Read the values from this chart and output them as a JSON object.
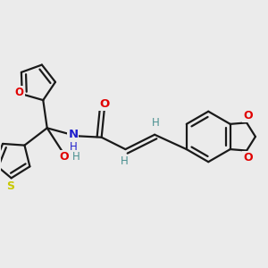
{
  "background_color": "#ebebeb",
  "bond_color": "#1a1a1a",
  "atom_colors": {
    "O": "#e00000",
    "N": "#2020cc",
    "S": "#c8c800",
    "H": "#4a9090",
    "C": "#1a1a1a"
  },
  "figsize": [
    3.0,
    3.0
  ],
  "dpi": 100,
  "lw": 1.6,
  "ring_lw": 1.6
}
